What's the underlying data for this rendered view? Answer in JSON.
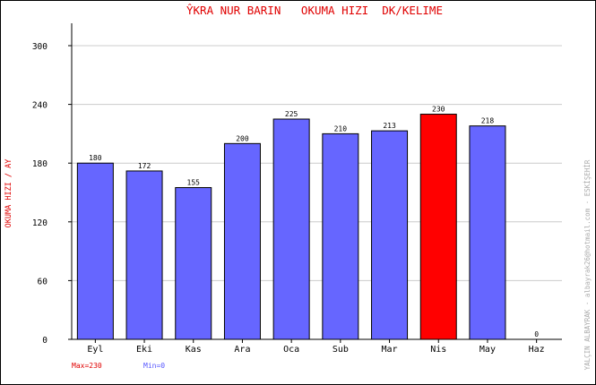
{
  "chart_data": {
    "type": "bar",
    "title": "ŶKRA NUR BARIN   OKUMA HIZI  DK/KELIME",
    "ylabel": "OKUMA HIZI / AY",
    "xlabel": "",
    "categories": [
      "Eyl",
      "Eki",
      "Kas",
      "Ara",
      "Oca",
      "Sub",
      "Mar",
      "Nis",
      "May",
      "Haz"
    ],
    "values": [
      180,
      172,
      155,
      200,
      225,
      210,
      213,
      230,
      218,
      0
    ],
    "data_labels": [
      "180",
      "172",
      "155",
      "200",
      "225",
      "210",
      "213",
      "230",
      "218",
      "0"
    ],
    "ylim": [
      0,
      300
    ],
    "yticks": [
      0,
      60,
      120,
      180,
      240,
      300
    ],
    "ytick_labels": [
      "0",
      "60",
      "120",
      "180",
      "240",
      "300"
    ],
    "grid": true,
    "legend": "none",
    "max_label": "Max=230",
    "min_label": "Min=0",
    "watermark": "YALÇIN ALBAYRAK · albayrak26@hotmail.com · ESKİŞEHİR",
    "colors": {
      "bar": "#6666ff",
      "bar_max": "#ff0000",
      "bar_outline": "#000000",
      "title": "#e00000",
      "ylabel": "#e00000",
      "max_label": "#e00000",
      "min_label": "#5555ff",
      "grid": "#cccccc",
      "watermark": "#aaaaaa"
    }
  }
}
